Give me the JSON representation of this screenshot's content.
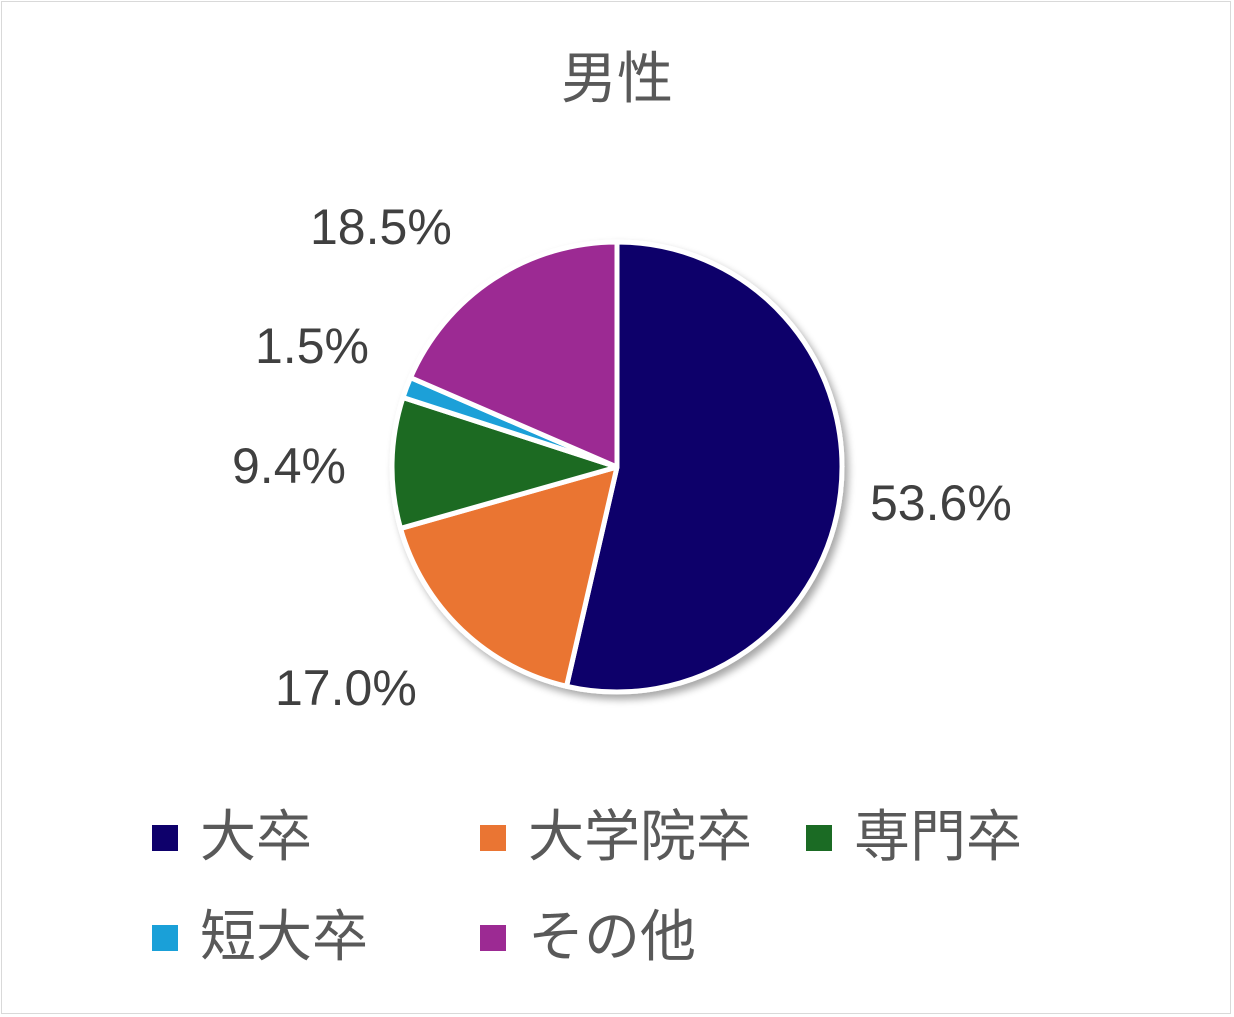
{
  "chart_data": {
    "type": "pie",
    "title": "男性",
    "categories": [
      "大卒",
      "大学院卒",
      "専門卒",
      "短大卒",
      "その他"
    ],
    "values": [
      53.6,
      17.0,
      9.4,
      1.5,
      18.5
    ],
    "labels": [
      "53.6%",
      "17.0%",
      "9.4%",
      "1.5%",
      "18.5%"
    ],
    "colors": [
      "#0e006b",
      "#ea7533",
      "#1b6b24",
      "#1aa0d8",
      "#9c2a93"
    ],
    "legend": "bottom"
  }
}
